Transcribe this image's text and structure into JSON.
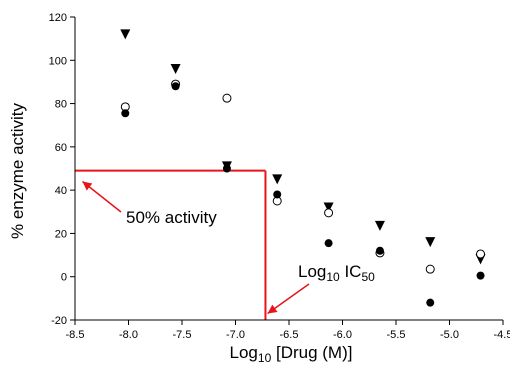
{
  "chart_data": {
    "type": "scatter",
    "title": "",
    "xlabel": "Log",
    "xlabel_sub": "10",
    "xlabel_rest": " [Drug (M)]",
    "ylabel": "% enzyme  activity",
    "xlim": [
      -8.5,
      -4.5
    ],
    "ylim": [
      -20,
      120
    ],
    "x_ticks": [
      -8.5,
      -8.0,
      -7.5,
      -7.0,
      -6.5,
      -6.0,
      -5.5,
      -5.0,
      -4.5
    ],
    "x_tick_labels": [
      "-8.5",
      "-8.0",
      "-7.5",
      "-7.0",
      "-6.5",
      "-6.0",
      "-5.5",
      "-5.0",
      "-4.5"
    ],
    "y_ticks": [
      -20,
      0,
      20,
      40,
      60,
      80,
      100,
      120
    ],
    "y_tick_labels": [
      "-20",
      "0",
      "20",
      "40",
      "60",
      "80",
      "100",
      "120"
    ],
    "grid": false,
    "series": [
      {
        "marker": "triangle-down",
        "color": "#000000",
        "points": [
          {
            "x": -8.03,
            "y": 112
          },
          {
            "x": -7.56,
            "y": 96
          },
          {
            "x": -7.08,
            "y": 51
          },
          {
            "x": -6.61,
            "y": 45
          },
          {
            "x": -6.13,
            "y": 32
          },
          {
            "x": -5.65,
            "y": 23.5
          },
          {
            "x": -5.18,
            "y": 16
          },
          {
            "x": -4.71,
            "y": 8
          }
        ]
      },
      {
        "marker": "circle-open",
        "color": "#000000",
        "points": [
          {
            "x": -8.03,
            "y": 78.5
          },
          {
            "x": -7.56,
            "y": 89
          },
          {
            "x": -7.08,
            "y": 82.5
          },
          {
            "x": -6.61,
            "y": 35
          },
          {
            "x": -6.13,
            "y": 29.5
          },
          {
            "x": -5.65,
            "y": 11
          },
          {
            "x": -5.18,
            "y": 3.5
          },
          {
            "x": -4.71,
            "y": 10.5
          }
        ]
      },
      {
        "marker": "circle-filled",
        "color": "#000000",
        "points": [
          {
            "x": -8.03,
            "y": 75.5
          },
          {
            "x": -7.56,
            "y": 88
          },
          {
            "x": -7.08,
            "y": 50
          },
          {
            "x": -6.61,
            "y": 38
          },
          {
            "x": -6.13,
            "y": 15.5
          },
          {
            "x": -5.65,
            "y": 12
          },
          {
            "x": -5.18,
            "y": -12
          },
          {
            "x": -4.71,
            "y": 0.5
          }
        ]
      }
    ],
    "reference_lines": {
      "color": "#e8141c",
      "horizontal_y": 49,
      "vertical_x": -6.72
    },
    "annotations": [
      {
        "id": "activity50",
        "text": "50% activity",
        "text_sub": "",
        "text_rest": "",
        "arrow_tip": {
          "x": -8.43,
          "y": 44
        }
      },
      {
        "id": "ic50",
        "text": "Log",
        "text_sub": "10",
        "text_rest": " IC",
        "text_sub2": "50",
        "arrow_tip": {
          "x": -6.7,
          "y": -17
        }
      }
    ]
  }
}
